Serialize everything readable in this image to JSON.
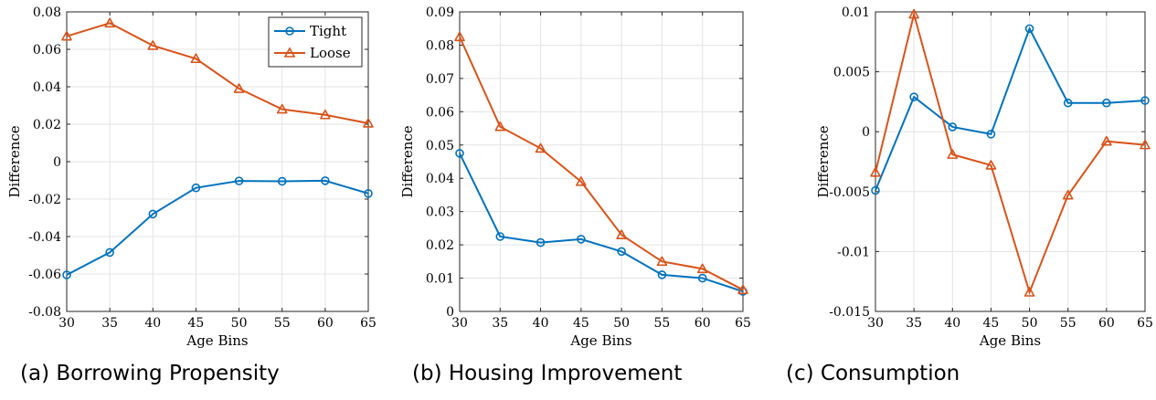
{
  "chart_data": [
    {
      "type": "line",
      "caption": "(a) Borrowing Propensity",
      "xlabel": "Age Bins",
      "ylabel": "Difference",
      "x": [
        30,
        35,
        40,
        45,
        50,
        55,
        60,
        65
      ],
      "xticks": [
        30,
        35,
        40,
        45,
        50,
        55,
        60,
        65
      ],
      "ylim": [
        -0.08,
        0.08
      ],
      "yticks": [
        -0.08,
        -0.06,
        -0.04,
        -0.02,
        0,
        0.02,
        0.04,
        0.06,
        0.08
      ],
      "ytick_labels": [
        "-0.08",
        "-0.06",
        "-0.04",
        "-0.02",
        "0",
        "0.02",
        "0.04",
        "0.06",
        "0.08"
      ],
      "grid": true,
      "legend": "top-right",
      "series": [
        {
          "name": "Tight",
          "marker": "circle",
          "color": "#0072BD",
          "values": [
            -0.0605,
            -0.0485,
            -0.028,
            -0.014,
            -0.0103,
            -0.0105,
            -0.0102,
            -0.017
          ]
        },
        {
          "name": "Loose",
          "marker": "triangle",
          "color": "#D95319",
          "values": [
            0.067,
            0.074,
            0.062,
            0.055,
            0.039,
            0.028,
            0.025,
            0.0205
          ]
        }
      ]
    },
    {
      "type": "line",
      "caption": "(b) Housing Improvement",
      "xlabel": "Age Bins",
      "ylabel": "Difference",
      "x": [
        30,
        35,
        40,
        45,
        50,
        55,
        60,
        65
      ],
      "xticks": [
        30,
        35,
        40,
        45,
        50,
        55,
        60,
        65
      ],
      "ylim": [
        0,
        0.09
      ],
      "yticks": [
        0,
        0.01,
        0.02,
        0.03,
        0.04,
        0.05,
        0.06,
        0.07,
        0.08,
        0.09
      ],
      "ytick_labels": [
        "0",
        "0.01",
        "0.02",
        "0.03",
        "0.04",
        "0.05",
        "0.06",
        "0.07",
        "0.08",
        "0.09"
      ],
      "grid": true,
      "series": [
        {
          "name": "Tight",
          "marker": "circle",
          "color": "#0072BD",
          "values": [
            0.0475,
            0.0225,
            0.0207,
            0.0217,
            0.018,
            0.011,
            0.01,
            0.006
          ]
        },
        {
          "name": "Loose",
          "marker": "triangle",
          "color": "#D95319",
          "values": [
            0.0825,
            0.0555,
            0.049,
            0.039,
            0.023,
            0.015,
            0.0128,
            0.0065
          ]
        }
      ]
    },
    {
      "type": "line",
      "caption": "(c) Consumption",
      "xlabel": "Age Bins",
      "ylabel": "Difference",
      "x": [
        30,
        35,
        40,
        45,
        50,
        55,
        60,
        65
      ],
      "xticks": [
        30,
        35,
        40,
        45,
        50,
        55,
        60,
        65
      ],
      "ylim": [
        -0.015,
        0.01
      ],
      "yticks": [
        -0.015,
        -0.01,
        -0.005,
        0,
        0.005,
        0.01
      ],
      "ytick_labels": [
        "-0.015",
        "-0.01",
        "-0.005",
        "0",
        "0.005",
        "0.01"
      ],
      "grid": true,
      "series": [
        {
          "name": "Tight",
          "marker": "circle",
          "color": "#0072BD",
          "values": [
            -0.0049,
            0.0029,
            0.0004,
            -0.0002,
            0.0086,
            0.0024,
            0.0024,
            0.0026
          ]
        },
        {
          "name": "Loose",
          "marker": "triangle",
          "color": "#D95319",
          "values": [
            -0.0034,
            0.0098,
            -0.0019,
            -0.0028,
            -0.0134,
            -0.0053,
            -0.0008,
            -0.0011
          ]
        }
      ]
    }
  ]
}
